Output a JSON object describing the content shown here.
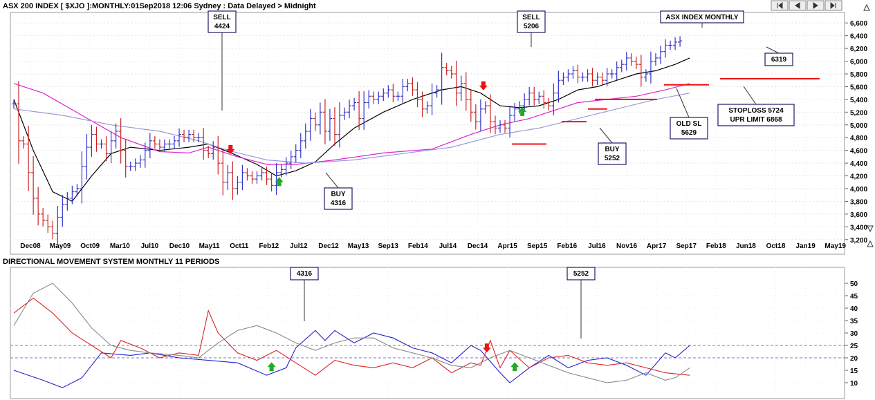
{
  "header": {
    "title": "ASX 200 INDEX [ $XJO ]:MONTHLY:01Sep2018 12:06 Sydney : Data Delayed > Midnight",
    "nav_icons": [
      "skip-first-icon",
      "step-back-icon",
      "step-forward-icon",
      "skip-last-icon"
    ],
    "scroll_up_icon": "triangle-up-icon",
    "scroll_down_icon": "triangle-down-icon"
  },
  "colors": {
    "up_bar": "#3333cc",
    "down_bar": "#cc2222",
    "short_ma": "#000000",
    "mid_ma": "#dd22cc",
    "long_ma": "#9999dd",
    "dmi_plus": "#2222cc",
    "dmi_minus": "#dd2222",
    "adx": "#888888",
    "marker_up": "#22aa22",
    "marker_down": "#ee1111"
  },
  "chart_data": [
    {
      "type": "ohlc",
      "title": "ASX INDEX MONTHLY",
      "x_tick_labels": [
        "Dec08",
        "May09",
        "Oct09",
        "Mar10",
        "Jul10",
        "Dec10",
        "May11",
        "Oct11",
        "Feb12",
        "Jul12",
        "Dec12",
        "May13",
        "Sep13",
        "Feb14",
        "Jul14",
        "Dec14",
        "Apr15",
        "Sep15",
        "Feb16",
        "Jul16",
        "Nov16",
        "Apr17",
        "Sep17",
        "Feb18",
        "Jun18",
        "Oct18",
        "Jan19",
        "May19"
      ],
      "y_ticks": [
        "3,200",
        "3,400",
        "3,600",
        "3,800",
        "4,000",
        "4,200",
        "4,400",
        "4,600",
        "4,800",
        "5,000",
        "5,200",
        "5,400",
        "5,600",
        "5,800",
        "6,000",
        "6,200",
        "6,400",
        "6,600"
      ],
      "ylim": [
        3100,
        6700
      ],
      "close_series": [
        5330,
        4750,
        4700,
        4250,
        3850,
        3600,
        3500,
        3400,
        3300,
        3550,
        3750,
        3850,
        3950,
        4000,
        4350,
        4650,
        4850,
        4700,
        4700,
        4550,
        4750,
        4900,
        4600,
        4350,
        4350,
        4400,
        4450,
        4600,
        4750,
        4700,
        4650,
        4700,
        4700,
        4750,
        4850,
        4800,
        4850,
        4800,
        4800,
        4600,
        4550,
        4650,
        4400,
        4100,
        4250,
        4000,
        4100,
        4250,
        4200,
        4150,
        4200,
        4250,
        4150,
        4050,
        4250,
        4300,
        4400,
        4500,
        4600,
        4750,
        4900,
        5100,
        5000,
        5200,
        4900,
        5100,
        4850,
        5150,
        5200,
        5300,
        5350,
        5100,
        5350,
        5450,
        5400,
        5450,
        5500,
        5550,
        5450,
        5450,
        5600,
        5650,
        5550,
        5400,
        5250,
        5300,
        5500,
        5550,
        5900,
        5850,
        5800,
        5500,
        5650,
        5400,
        5200,
        5050,
        5250,
        5300,
        5050,
        4950,
        5000,
        4950,
        5150,
        5250,
        5300,
        5400,
        5500,
        5400,
        5450,
        5350,
        5300,
        5500,
        5700,
        5750,
        5800,
        5850,
        5750,
        5750,
        5800,
        5700,
        5750,
        5700,
        5800,
        5800,
        5900,
        5950,
        6050,
        6000,
        5950,
        5750,
        5800,
        6000,
        6050,
        6150,
        6250,
        6250,
        6300,
        6319
      ],
      "moving_averages": [
        {
          "name": "",
          "role": "short",
          "points": [
            [
              0,
              5400
            ],
            [
              4,
              4600
            ],
            [
              8,
              3950
            ],
            [
              12,
              3800
            ],
            [
              16,
              4200
            ],
            [
              20,
              4550
            ],
            [
              24,
              4650
            ],
            [
              30,
              4600
            ],
            [
              36,
              4650
            ],
            [
              40,
              4700
            ],
            [
              45,
              4550
            ],
            [
              50,
              4380
            ],
            [
              54,
              4200
            ],
            [
              58,
              4280
            ],
            [
              62,
              4420
            ],
            [
              66,
              4700
            ],
            [
              70,
              4950
            ],
            [
              76,
              5200
            ],
            [
              82,
              5400
            ],
            [
              88,
              5550
            ],
            [
              92,
              5600
            ],
            [
              96,
              5500
            ],
            [
              100,
              5300
            ],
            [
              104,
              5270
            ],
            [
              108,
              5300
            ],
            [
              112,
              5400
            ],
            [
              116,
              5550
            ],
            [
              120,
              5600
            ],
            [
              124,
              5700
            ],
            [
              128,
              5800
            ],
            [
              132,
              5850
            ],
            [
              136,
              5950
            ],
            [
              139,
              6050
            ]
          ]
        },
        {
          "name": "",
          "role": "mid",
          "points": [
            [
              0,
              5650
            ],
            [
              6,
              5500
            ],
            [
              14,
              5150
            ],
            [
              22,
              4800
            ],
            [
              30,
              4580
            ],
            [
              36,
              4560
            ],
            [
              40,
              4650
            ],
            [
              46,
              4500
            ],
            [
              52,
              4380
            ],
            [
              58,
              4380
            ],
            [
              66,
              4450
            ],
            [
              76,
              4560
            ],
            [
              86,
              4620
            ],
            [
              94,
              4850
            ],
            [
              100,
              5000
            ],
            [
              106,
              5100
            ],
            [
              112,
              5250
            ],
            [
              116,
              5350
            ],
            [
              122,
              5400
            ],
            [
              128,
              5450
            ],
            [
              134,
              5550
            ],
            [
              139,
              5650
            ]
          ]
        },
        {
          "name": "",
          "role": "long",
          "points": [
            [
              0,
              5250
            ],
            [
              10,
              5150
            ],
            [
              20,
              5000
            ],
            [
              30,
              4900
            ],
            [
              38,
              4750
            ],
            [
              44,
              4600
            ],
            [
              52,
              4450
            ],
            [
              60,
              4400
            ],
            [
              70,
              4450
            ],
            [
              80,
              4550
            ],
            [
              90,
              4650
            ],
            [
              100,
              4850
            ],
            [
              108,
              4950
            ],
            [
              116,
              5100
            ],
            [
              124,
              5250
            ],
            [
              132,
              5400
            ],
            [
              139,
              5500
            ]
          ]
        }
      ],
      "horizontal_levels": [
        {
          "label": "STOPLOSS 5724 UPR LIMIT 6868",
          "value": 5724
        },
        {
          "label": "OLD SL 5629",
          "value": 5629
        },
        {
          "label": "",
          "value": 5400
        },
        {
          "label": "",
          "value": 5250
        },
        {
          "label": "",
          "value": 5050
        },
        {
          "label": "",
          "value": 4700
        }
      ],
      "annotations": [
        {
          "name": "sell-1",
          "lines": [
            "SELL",
            "4424"
          ],
          "dir": "down",
          "index": 44
        },
        {
          "name": "buy-1",
          "lines": [
            "BUY",
            "4316"
          ],
          "dir": "up",
          "index": 55
        },
        {
          "name": "sell-2",
          "lines": [
            "SELL",
            "5206"
          ],
          "dir": "down",
          "index": 96
        },
        {
          "name": "buy-2",
          "lines": [
            "BUY",
            "5252"
          ],
          "dir": "up",
          "index": 105
        },
        {
          "name": "old-sl",
          "lines": [
            "OLD SL",
            "5629"
          ],
          "dir": "none",
          "index": 124
        },
        {
          "name": "stoploss",
          "lines": [
            "STOPLOSS 5724",
            "UPR LIMIT 6868"
          ],
          "dir": "none",
          "index": 134
        },
        {
          "name": "last-price",
          "lines": [
            "6319"
          ],
          "dir": "none",
          "index": 139
        }
      ]
    },
    {
      "type": "line",
      "title": "DIRECTIONAL MOVEMENT SYSTEM MONTHLY 11 PERIODS",
      "y_ticks": [
        "10",
        "15",
        "20",
        "25",
        "30",
        "35",
        "40",
        "45",
        "50"
      ],
      "ylim": [
        5,
        55
      ],
      "reference_lines": [
        25,
        20
      ],
      "series": [
        {
          "name": "",
          "role": "plus",
          "points": [
            [
              0,
              15
            ],
            [
              6,
              11
            ],
            [
              10,
              8
            ],
            [
              14,
              12
            ],
            [
              18,
              22
            ],
            [
              24,
              21
            ],
            [
              28,
              22
            ],
            [
              34,
              20
            ],
            [
              40,
              19
            ],
            [
              46,
              18
            ],
            [
              52,
              13
            ],
            [
              56,
              16
            ],
            [
              58,
              24
            ],
            [
              62,
              31
            ],
            [
              64,
              27
            ],
            [
              66,
              31
            ],
            [
              70,
              26
            ],
            [
              74,
              30
            ],
            [
              78,
              28
            ],
            [
              82,
              24
            ],
            [
              86,
              22
            ],
            [
              90,
              18
            ],
            [
              94,
              25
            ],
            [
              96,
              23
            ],
            [
              100,
              14
            ],
            [
              102,
              10
            ],
            [
              106,
              16
            ],
            [
              110,
              21
            ],
            [
              114,
              16
            ],
            [
              118,
              19
            ],
            [
              122,
              20
            ],
            [
              126,
              17
            ],
            [
              130,
              13
            ],
            [
              134,
              22
            ],
            [
              136,
              20
            ],
            [
              139,
              25
            ]
          ]
        },
        {
          "name": "",
          "role": "minus",
          "points": [
            [
              0,
              38
            ],
            [
              4,
              44
            ],
            [
              8,
              38
            ],
            [
              12,
              30
            ],
            [
              16,
              25
            ],
            [
              20,
              20
            ],
            [
              22,
              27
            ],
            [
              26,
              24
            ],
            [
              30,
              20
            ],
            [
              34,
              22
            ],
            [
              38,
              21
            ],
            [
              40,
              39
            ],
            [
              42,
              30
            ],
            [
              46,
              22
            ],
            [
              50,
              19
            ],
            [
              54,
              23
            ],
            [
              58,
              18
            ],
            [
              62,
              13
            ],
            [
              66,
              19
            ],
            [
              70,
              17
            ],
            [
              74,
              16
            ],
            [
              78,
              18
            ],
            [
              82,
              16
            ],
            [
              86,
              20
            ],
            [
              90,
              14
            ],
            [
              94,
              18
            ],
            [
              96,
              17
            ],
            [
              98,
              27
            ],
            [
              100,
              16
            ],
            [
              102,
              23
            ],
            [
              106,
              16
            ],
            [
              110,
              20
            ],
            [
              114,
              21
            ],
            [
              118,
              18
            ],
            [
              122,
              17
            ],
            [
              126,
              18
            ],
            [
              130,
              16
            ],
            [
              134,
              14
            ],
            [
              139,
              13
            ]
          ]
        },
        {
          "name": "",
          "role": "adx",
          "points": [
            [
              0,
              33
            ],
            [
              4,
              46
            ],
            [
              8,
              50
            ],
            [
              12,
              42
            ],
            [
              16,
              32
            ],
            [
              20,
              25
            ],
            [
              24,
              23
            ],
            [
              28,
              22
            ],
            [
              34,
              21
            ],
            [
              38,
              20
            ],
            [
              42,
              26
            ],
            [
              46,
              31
            ],
            [
              50,
              33
            ],
            [
              54,
              30
            ],
            [
              58,
              26
            ],
            [
              62,
              23
            ],
            [
              66,
              26
            ],
            [
              70,
              28
            ],
            [
              74,
              28
            ],
            [
              78,
              24
            ],
            [
              82,
              22
            ],
            [
              86,
              20
            ],
            [
              90,
              17
            ],
            [
              94,
              16
            ],
            [
              98,
              20
            ],
            [
              102,
              23
            ],
            [
              106,
              20
            ],
            [
              110,
              17
            ],
            [
              114,
              14
            ],
            [
              118,
              12
            ],
            [
              122,
              10
            ],
            [
              126,
              11
            ],
            [
              130,
              14
            ],
            [
              134,
              11
            ],
            [
              136,
              12
            ],
            [
              139,
              16
            ]
          ]
        }
      ],
      "annotations": [
        {
          "name": "dmi-buy-1",
          "lines": [
            "4316"
          ],
          "dir": "up",
          "index": 55
        },
        {
          "name": "dmi-sell-2",
          "lines": [],
          "dir": "down",
          "index": 96
        },
        {
          "name": "dmi-buy-2",
          "lines": [
            "5252"
          ],
          "dir": "up",
          "index": 105
        }
      ]
    }
  ]
}
